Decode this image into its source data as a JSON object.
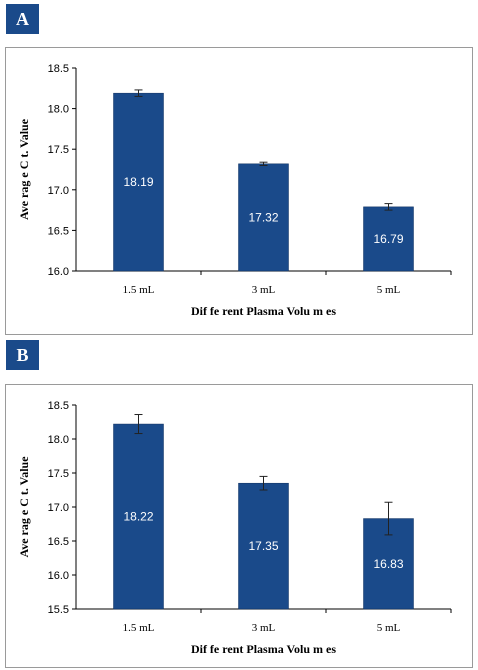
{
  "charts": [
    {
      "panel_label": "A",
      "chart_data": {
        "type": "bar",
        "categories": [
          "1.5 mL",
          "3 mL",
          "5 mL"
        ],
        "values": [
          18.19,
          17.32,
          16.79
        ],
        "error": [
          0.04,
          0.02,
          0.04
        ],
        "data_labels": [
          "18.19",
          "17.32",
          "16.79"
        ],
        "ylim": [
          16.0,
          18.5
        ],
        "yticks": [
          "16.0",
          "16.5",
          "17.0",
          "17.5",
          "18.0",
          "18.5"
        ],
        "ylabel": "Ave rag e C t. Value",
        "xlabel": "Dif fe rent Plasma      Volu m es",
        "bar_color": "#1a4a8a",
        "grid": false
      }
    },
    {
      "panel_label": "B",
      "chart_data": {
        "type": "bar",
        "categories": [
          "1.5 mL",
          "3 mL",
          "5 mL"
        ],
        "values": [
          18.22,
          17.35,
          16.83
        ],
        "error": [
          0.14,
          0.1,
          0.24
        ],
        "data_labels": [
          "18.22",
          "17.35",
          "16.83"
        ],
        "ylim": [
          15.5,
          18.5
        ],
        "yticks": [
          "15.5",
          "16.0",
          "16.5",
          "17.0",
          "17.5",
          "18.0",
          "18.5"
        ],
        "ylabel": "Ave rag e C t. Value",
        "xlabel": "Dif fe rent Plasma      Volu m es",
        "bar_color": "#1a4a8a",
        "grid": false
      }
    }
  ]
}
